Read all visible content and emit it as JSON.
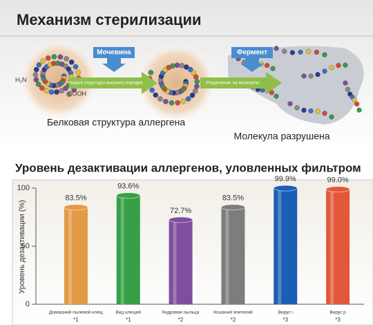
{
  "header": {
    "title": "Механизм стерилизации",
    "reagent_1": "Мочевина",
    "step_1": "Разрыв структуры высшего порядка",
    "reagent_2": "Фермент",
    "step_2": "Разделение на молекулы",
    "n_terminus": "H₂N",
    "c_terminus": "COOH",
    "caption_before": "Белковая структура аллергена",
    "caption_after": "Молекула разрушена"
  },
  "chart_data": {
    "type": "bar",
    "title": "Уровень дезактивации аллергенов, уловленных фильтром",
    "y_label": "Уровень дезактивации (%)",
    "categories": [
      "Домашний пылевой клещ",
      "Вид клещей",
      "Кедровая пыльца",
      "Кошачий эпителий",
      "Вирус i",
      "Вирус p"
    ],
    "notes": [
      "*1",
      "*1",
      "*2",
      "*2",
      "*3",
      "*3"
    ],
    "values": [
      83.5,
      93.6,
      72.7,
      83.5,
      99.9,
      99.0
    ],
    "value_labels": [
      "83.5%",
      "93.6%",
      "72.7%",
      "83.5%",
      "99.9%",
      "99.0%"
    ],
    "colors": [
      "#e39a45",
      "#35a045",
      "#7e4f9e",
      "#7d7d7d",
      "#1b5fb4",
      "#e2583a"
    ],
    "ylim": [
      0,
      100
    ],
    "yticks": [
      0,
      50,
      100
    ]
  }
}
